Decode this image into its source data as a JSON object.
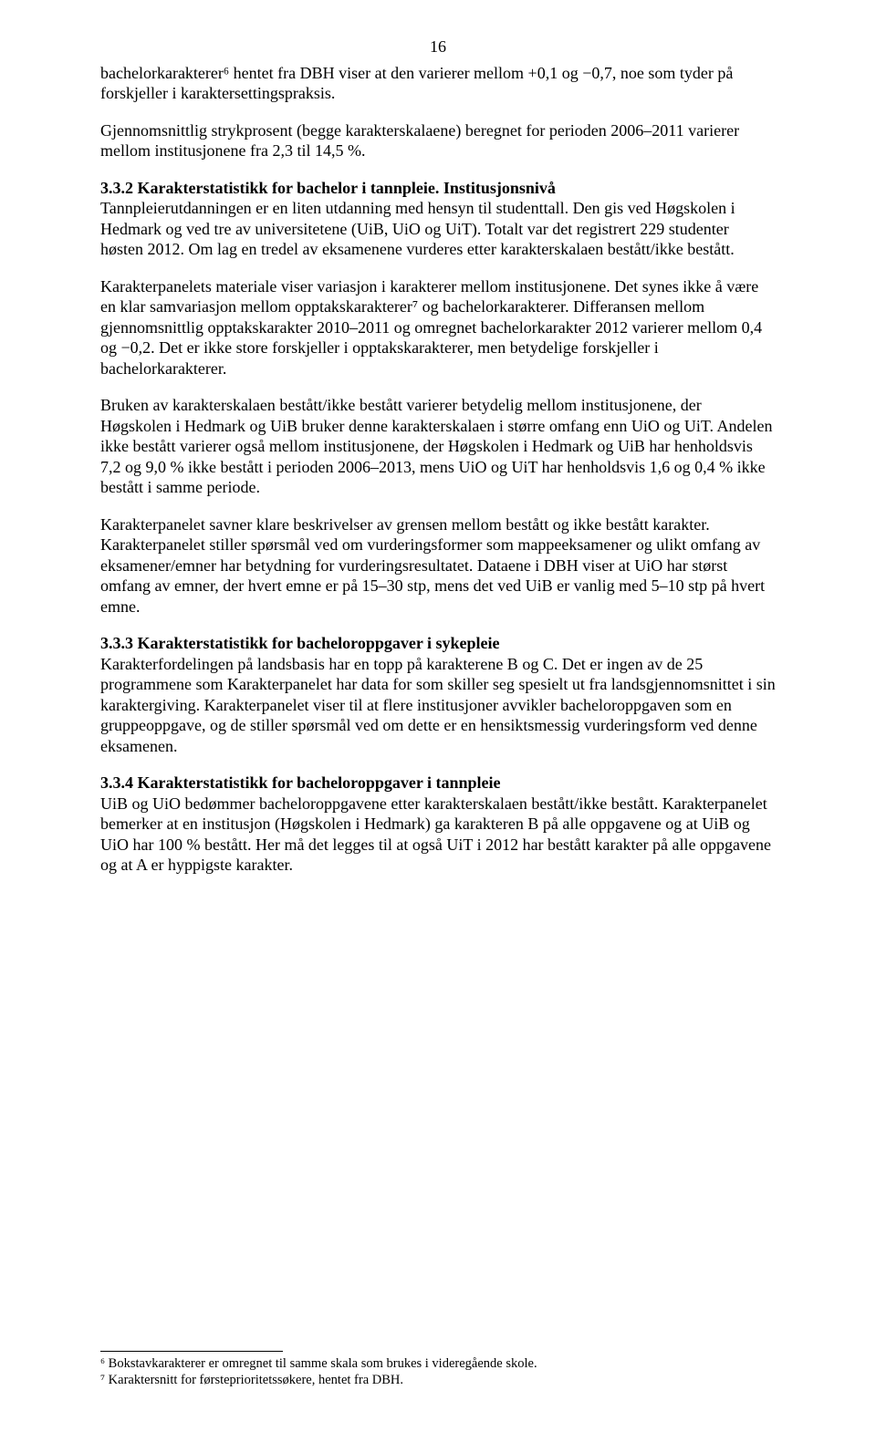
{
  "page_number": "16",
  "paragraphs": {
    "p1": "bachelorkarakterer⁶ hentet fra DBH viser at den varierer mellom +0,1 og −0,7, noe som tyder på forskjeller i karaktersettingspraksis.",
    "p2": "Gjennomsnittlig strykprosent (begge karakterskalaene) beregnet for perioden 2006–2011 varierer mellom institusjonene fra 2,3 til 14,5 %."
  },
  "section_332": {
    "heading": "3.3.2   Karakterstatistikk for bachelor i tannpleie. Institusjonsnivå",
    "body1": "Tannpleierutdanningen er en liten utdanning med hensyn til studenttall. Den gis ved Høgskolen i Hedmark og ved tre av universitetene (UiB, UiO og UiT). Totalt var det registrert 229 studenter høsten 2012. Om lag en tredel av eksamenene vurderes etter karakterskalaen bestått/ikke bestått.",
    "body2": "Karakterpanelets materiale viser variasjon i karakterer mellom institusjonene. Det synes ikke å være en klar samvariasjon mellom opptakskarakterer⁷ og bachelorkarakterer. Differansen mellom gjennomsnittlig opptakskarakter 2010–2011 og omregnet bachelorkarakter 2012 varierer mellom 0,4 og −0,2. Det er ikke store forskjeller i opptakskarakterer, men betydelige forskjeller i bachelorkarakterer.",
    "body3": "Bruken av karakterskalaen bestått/ikke bestått varierer betydelig mellom institusjonene, der Høgskolen i Hedmark og UiB bruker denne karakterskalaen i større omfang enn UiO og UiT. Andelen ikke bestått varierer også mellom institusjonene, der Høgskolen i Hedmark og UiB har henholdsvis 7,2 og 9,0 % ikke bestått i perioden 2006–2013, mens UiO og UiT har henholdsvis 1,6 og 0,4 % ikke bestått i samme periode.",
    "body4": "Karakterpanelet savner klare beskrivelser av grensen mellom bestått og ikke bestått karakter. Karakterpanelet stiller spørsmål ved om vurderingsformer som mappeeksamener og ulikt omfang av eksamener/emner har betydning for vurderingsresultatet. Dataene i DBH viser at UiO har størst omfang av emner, der hvert emne er på 15–30 stp, mens det ved UiB er vanlig med 5–10 stp på hvert emne."
  },
  "section_333": {
    "heading": "3.3.3   Karakterstatistikk for bacheloroppgaver i sykepleie",
    "body": "Karakterfordelingen på landsbasis har en topp på karakterene B og C. Det er ingen av de 25 programmene som Karakterpanelet har data for som skiller seg spesielt ut fra landsgjennomsnittet i sin karaktergiving. Karakterpanelet viser til at flere institusjoner avvikler bacheloroppgaven som en gruppeoppgave, og de stiller spørsmål ved om dette er en hensiktsmessig vurderingsform ved denne eksamenen."
  },
  "section_334": {
    "heading": "3.3.4   Karakterstatistikk for bacheloroppgaver i tannpleie",
    "body": "UiB og UiO bedømmer bacheloroppgavene etter karakterskalaen bestått/ikke bestått. Karakterpanelet bemerker at en institusjon (Høgskolen i Hedmark) ga karakteren B på alle oppgavene og at UiB og UiO har 100 % bestått. Her må det legges til at også UiT i 2012 har bestått karakter på alle oppgavene og at A er hyppigste karakter."
  },
  "footnotes": {
    "f6": "⁶ Bokstavkarakterer er omregnet til samme skala som brukes i videregående skole.",
    "f7": "⁷ Karaktersnitt for førsteprioritetssøkere, hentet fra DBH."
  }
}
